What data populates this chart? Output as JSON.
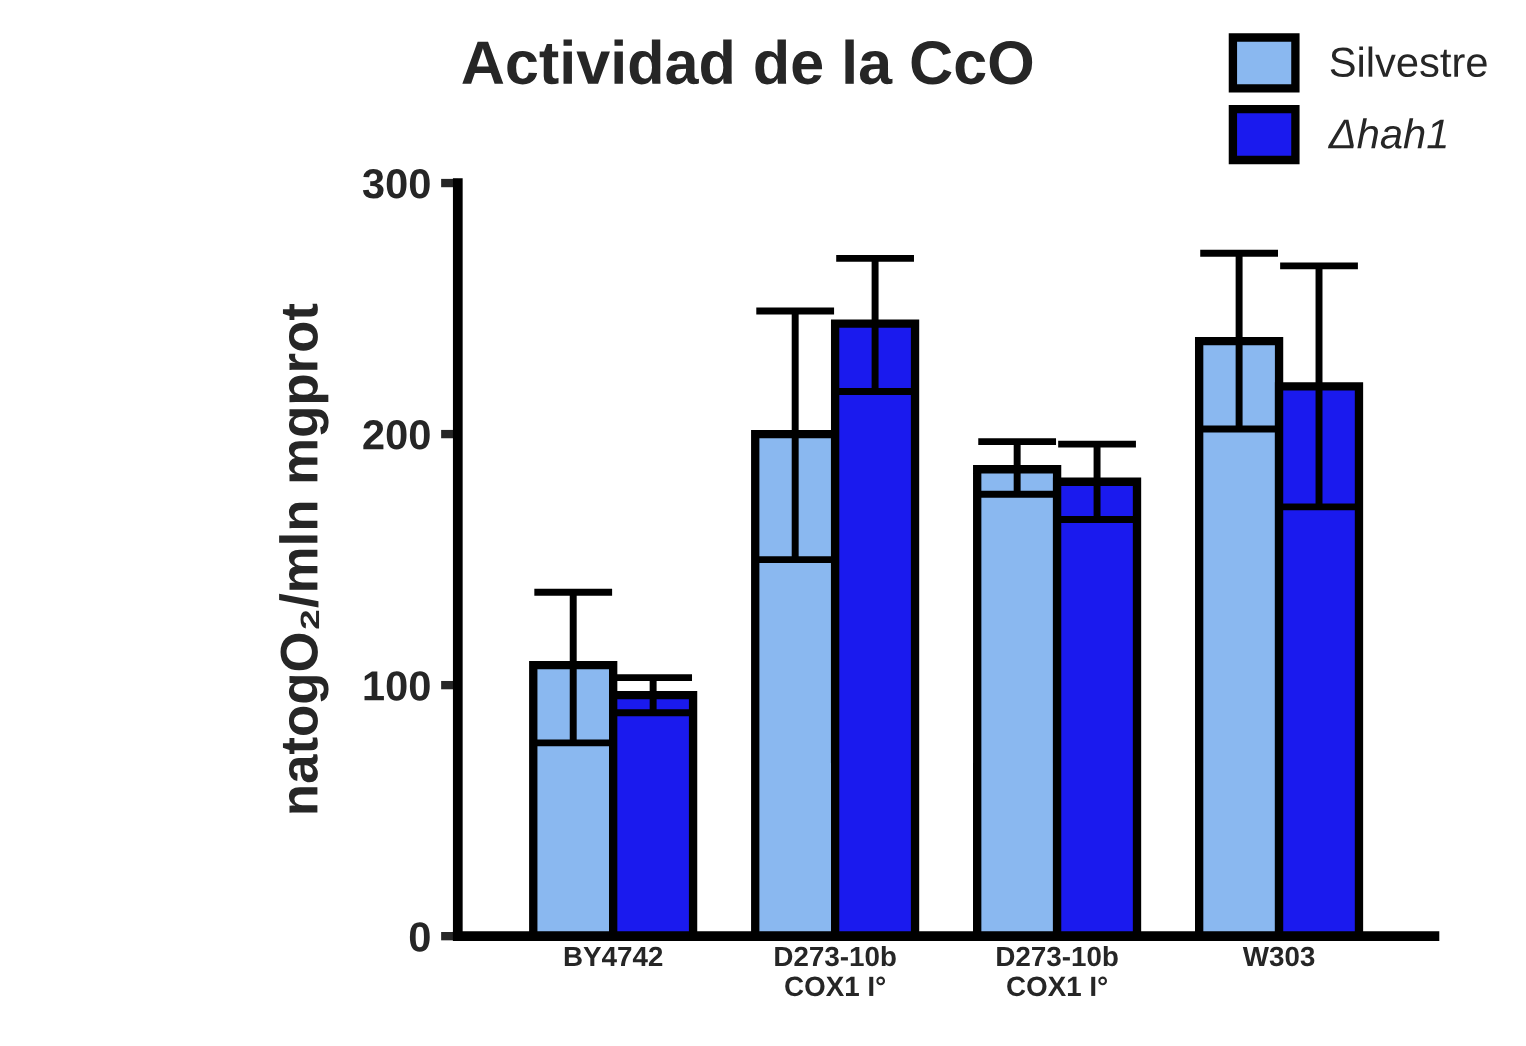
{
  "chart_data": {
    "type": "bar",
    "title": "Actividad de la CcO",
    "ylabel": "natogO₂/mln mgprot",
    "categories": [
      "BY4742",
      "D273-10b\nCOX1 I°",
      "D273-10b\nCOX1 I°",
      "W303"
    ],
    "series": [
      {
        "name": "Silvestre",
        "color": "#8ab8f0",
        "values": [
          108,
          200,
          186,
          237
        ],
        "errors": [
          [
            77,
            137
          ],
          [
            150,
            249
          ],
          [
            176,
            197
          ],
          [
            202,
            272
          ]
        ]
      },
      {
        "name": "Δhah1",
        "color": "#1a1aee",
        "values": [
          96,
          244,
          181,
          219
        ],
        "errors": [
          [
            89,
            103
          ],
          [
            217,
            270
          ],
          [
            166,
            196
          ],
          [
            171,
            267
          ]
        ]
      }
    ],
    "ylim": [
      0,
      300
    ],
    "yticks": [
      0,
      100,
      200,
      300
    ],
    "grid": false,
    "legend": "top right"
  }
}
